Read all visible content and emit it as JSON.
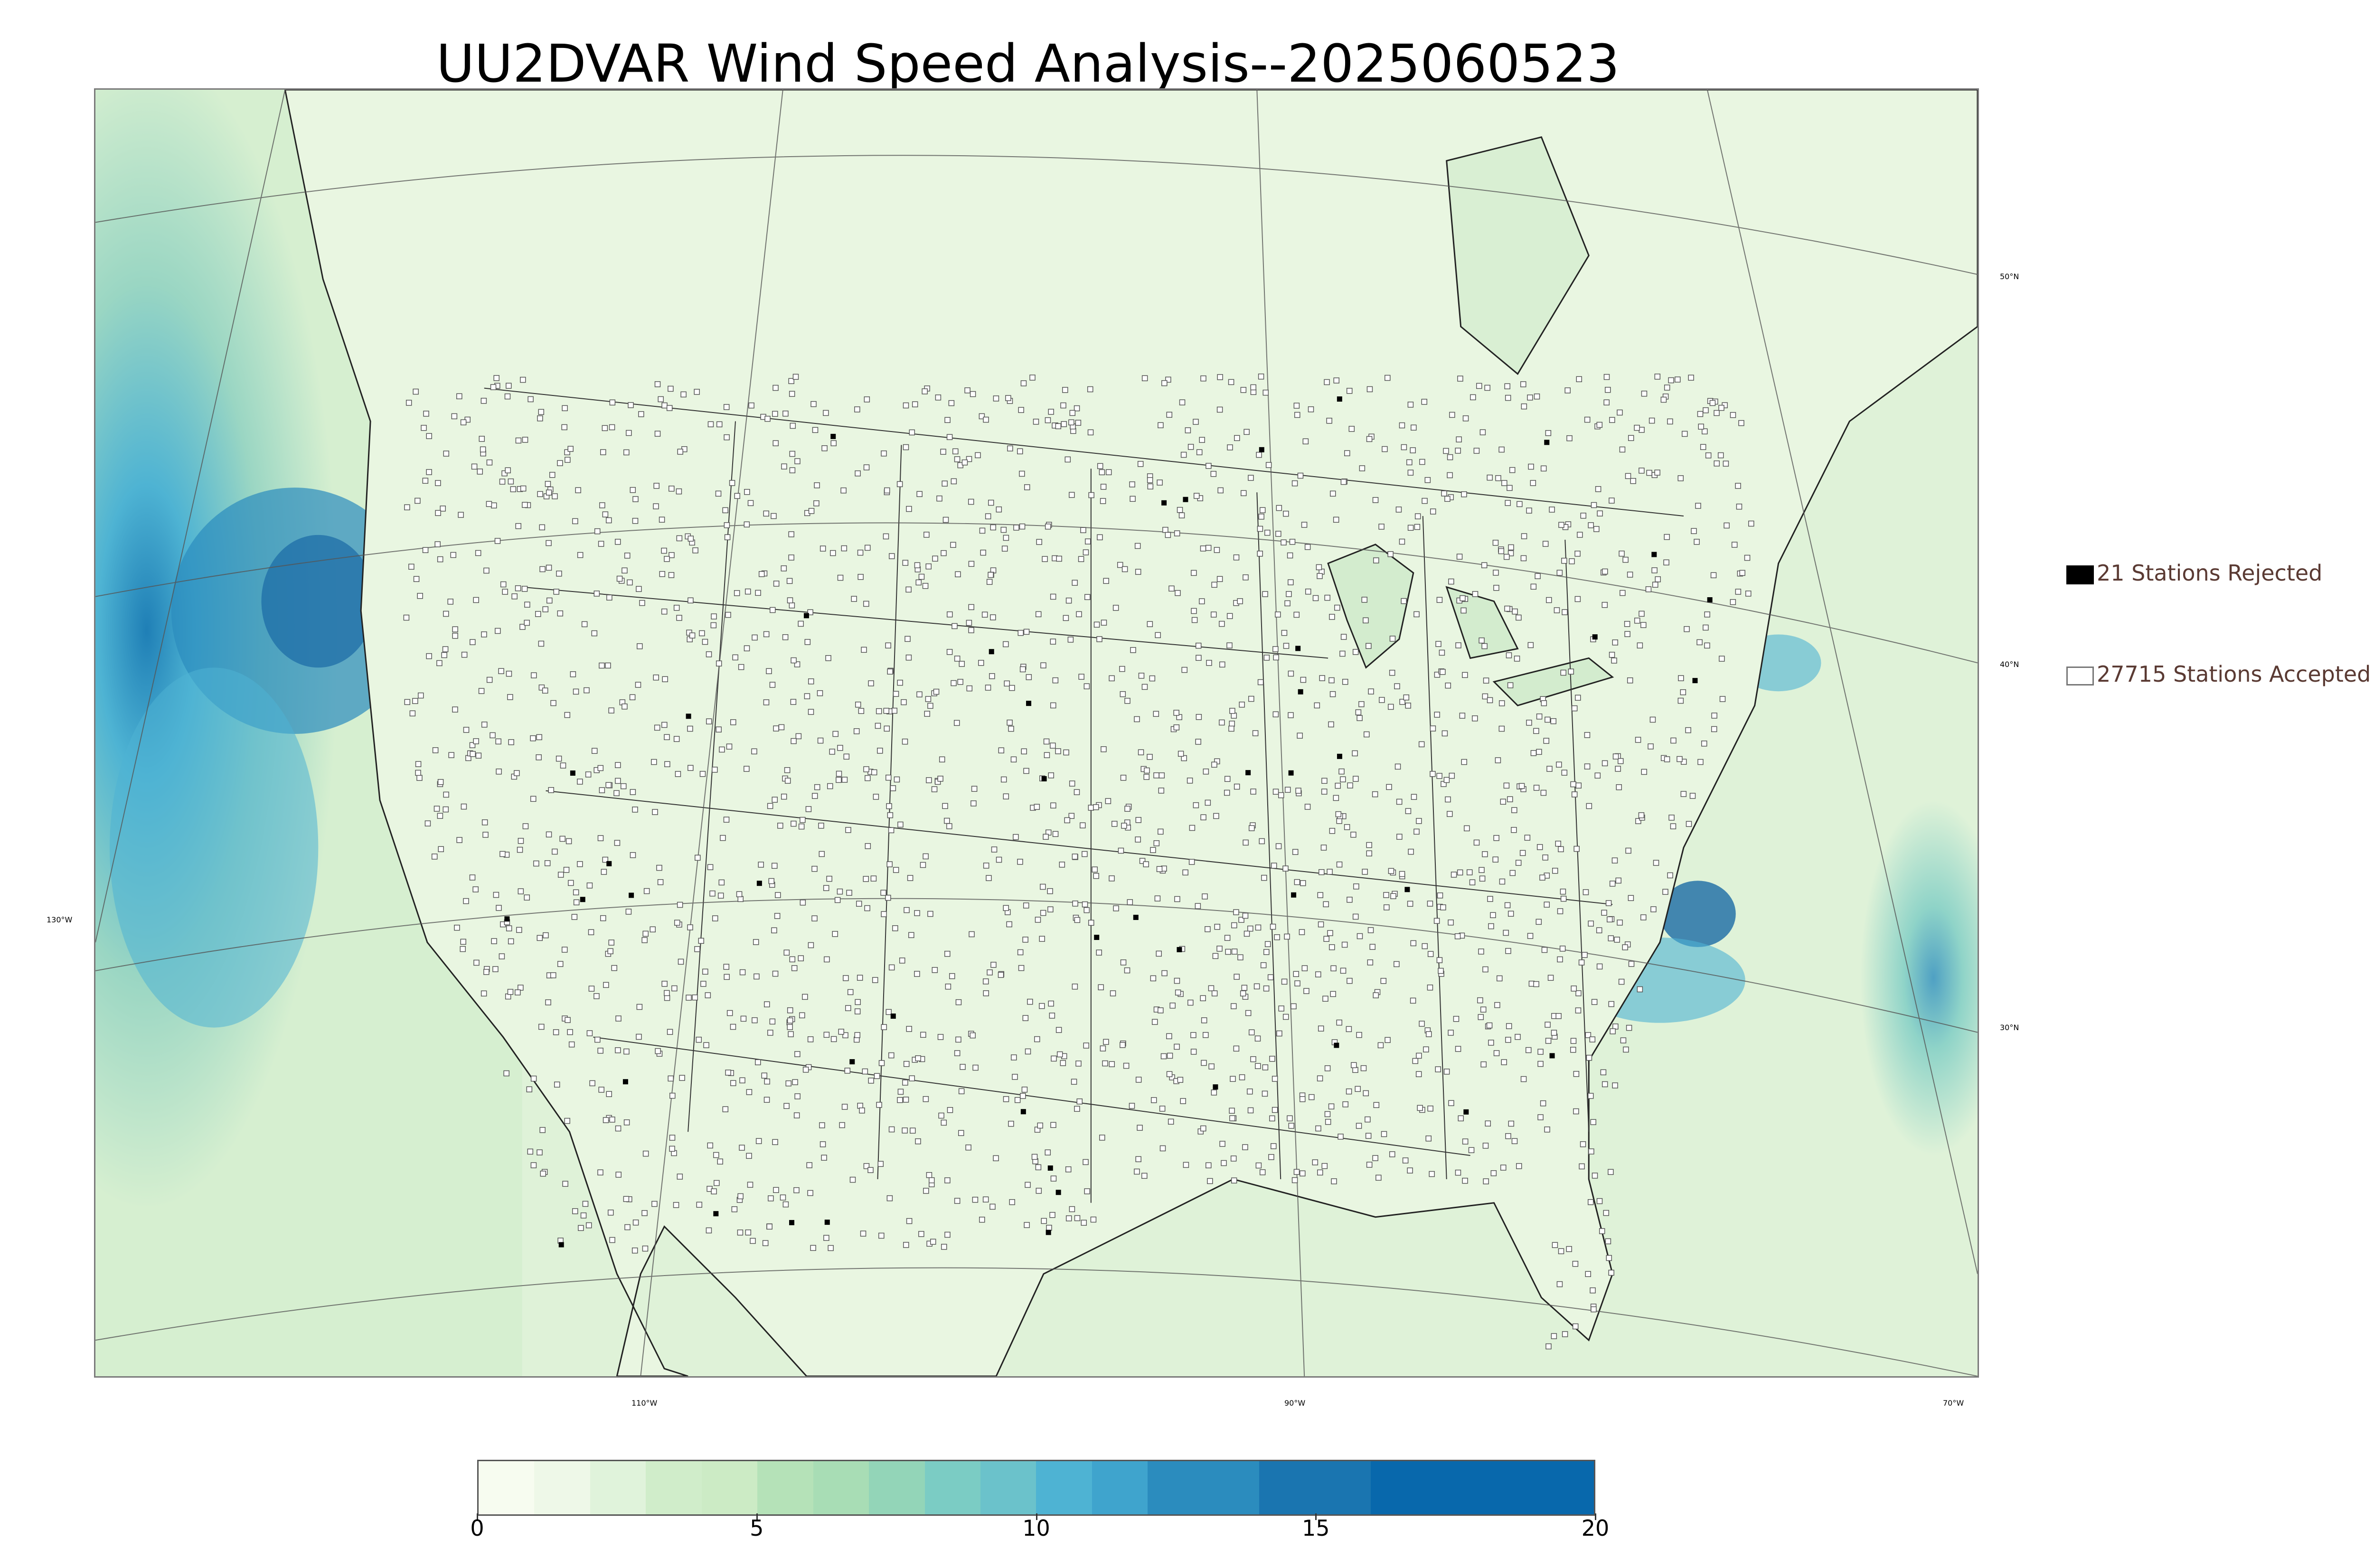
{
  "title": "UU2DVAR Wind Speed Analysis--2025060523",
  "lon_labels": [
    "130°W",
    "110°W",
    "90°W",
    "70°W"
  ],
  "lat_labels": [
    "50°N",
    "40°N",
    "30°N"
  ],
  "legend": {
    "rejected": {
      "label": "21 Stations Rejected",
      "color": "#000000"
    },
    "accepted": {
      "label": "27715 Stations Accepted",
      "color": "#ffffff"
    }
  },
  "colorbar": {
    "ticks": [
      "0",
      "5",
      "10",
      "15",
      "20"
    ],
    "min": 0,
    "max": 20,
    "colors": [
      "#f7fcf0",
      "#eef8e8",
      "#e0f3db",
      "#d0edca",
      "#ccebc5",
      "#b5e2b8",
      "#a8ddb5",
      "#93d5b8",
      "#7bccc4",
      "#6bc2cb",
      "#4eb3d3",
      "#3fa4cd",
      "#2b8cbe",
      "#1a75b0",
      "#0868ac"
    ],
    "bounds": [
      0,
      1,
      2,
      3,
      4,
      5,
      6,
      7,
      8,
      9,
      10,
      11,
      12,
      14,
      16,
      20
    ]
  },
  "colors": {
    "ocean_low": "#d4eecf",
    "ocean_high": "#2b8cbe",
    "land": "#e6f5dd",
    "station_outline": "#555555"
  }
}
